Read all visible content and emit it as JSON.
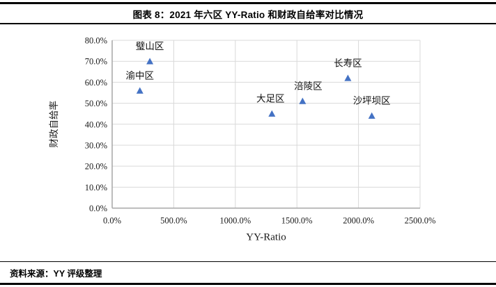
{
  "header": {
    "title": "图表 8：2021 年六区 YY-Ratio 和财政自给率对比情况"
  },
  "footer": {
    "source": "资料来源：YY 评级整理"
  },
  "chart_data": {
    "type": "scatter",
    "title": "图表 8：2021 年六区 YY-Ratio 和财政自给率对比情况",
    "xlabel": "YY-Ratio",
    "ylabel": "财政自给率",
    "xlim": [
      0,
      2500
    ],
    "ylim": [
      0,
      80
    ],
    "x_tick_values": [
      0,
      500,
      1000,
      1500,
      2000,
      2500
    ],
    "x_ticks": [
      "0.0%",
      "500.0%",
      "1000.0%",
      "1500.0%",
      "2000.0%",
      "2500.0%"
    ],
    "y_tick_values": [
      0,
      10,
      20,
      30,
      40,
      50,
      60,
      70,
      80
    ],
    "y_ticks": [
      "0.0%",
      "10.0%",
      "20.0%",
      "30.0%",
      "40.0%",
      "50.0%",
      "60.0%",
      "70.0%",
      "80.0%"
    ],
    "grid": true,
    "legend": "none",
    "marker": {
      "shape": "triangle-up",
      "color": "#4472C4",
      "size": 10
    },
    "colors": {
      "gridline": "#D9D9D9",
      "axis_line": "#A6A6A6",
      "marker": "#4472C4"
    },
    "label_position": "above",
    "points": [
      {
        "name": "渝中区",
        "x": 225,
        "y": 56,
        "label_dx": 0
      },
      {
        "name": "璧山区",
        "x": 306,
        "y": 70,
        "label_dx": 0
      },
      {
        "name": "大足区",
        "x": 1297,
        "y": 45,
        "label_dx": -2
      },
      {
        "name": "涪陵区",
        "x": 1546,
        "y": 51,
        "label_dx": 8
      },
      {
        "name": "长寿区",
        "x": 1914,
        "y": 62,
        "label_dx": 0
      },
      {
        "name": "沙坪坝区",
        "x": 2108,
        "y": 44,
        "label_dx": 0
      }
    ]
  }
}
